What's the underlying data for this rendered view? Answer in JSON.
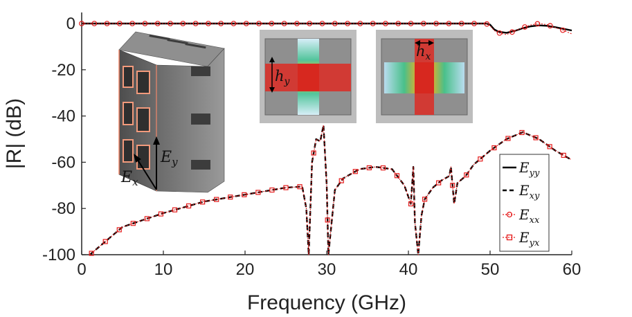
{
  "chart_data": {
    "type": "line",
    "xlabel": "Frequency (GHz)",
    "ylabel": "|R| (dB)",
    "xlim": [
      0,
      60
    ],
    "ylim": [
      -100,
      0
    ],
    "xticks": [
      0,
      10,
      20,
      30,
      40,
      50,
      60
    ],
    "yticks": [
      0,
      -20,
      -40,
      -60,
      -80,
      -100
    ],
    "grid": false,
    "legend_position": "right",
    "series": [
      {
        "name": "E_yy",
        "color": "#000000",
        "style": "solid",
        "x": [
          0,
          10,
          20,
          30,
          40,
          49.5,
          50,
          50.5,
          51,
          52,
          53,
          54,
          55,
          56,
          57,
          58,
          59,
          60
        ],
        "y": [
          0,
          0,
          0,
          0,
          0,
          0,
          -0.5,
          -2.5,
          -3.5,
          -4,
          -3.2,
          -2,
          -1.2,
          -0.8,
          -1,
          -1.6,
          -2.3,
          -3
        ]
      },
      {
        "name": "E_xy",
        "color": "#000000",
        "style": "dashed",
        "x": [
          1,
          5,
          10,
          15,
          20,
          25,
          27,
          27.5,
          27.8,
          28.2,
          28.7,
          29.2,
          29.6,
          30.0,
          30.2,
          31,
          32,
          34,
          36,
          38,
          39.5,
          40.3,
          40.6,
          40.8,
          41.2,
          41.6,
          42,
          43,
          44,
          45,
          45.2,
          45.6,
          46,
          47,
          48,
          50,
          52,
          54,
          56,
          58,
          60
        ],
        "y": [
          -100,
          -88,
          -82,
          -77,
          -74,
          -71,
          -70.5,
          -80,
          -100,
          -60,
          -50,
          -51,
          -44,
          -70,
          -100,
          -72,
          -67,
          -63,
          -62,
          -63,
          -70,
          -78,
          -62,
          -86,
          -100,
          -83,
          -76,
          -71,
          -68,
          -66,
          -62,
          -78,
          -69,
          -66,
          -61,
          -55,
          -50,
          -47,
          -50,
          -55,
          -59
        ]
      },
      {
        "name": "E_xx",
        "color": "#e51b1b",
        "style": "dotted-circle",
        "x": [
          0,
          10,
          20,
          30,
          40,
          49.5,
          50,
          50.5,
          51,
          52,
          53,
          54,
          55,
          56,
          57,
          58,
          59,
          60
        ],
        "y": [
          0,
          0,
          0,
          0,
          0,
          0,
          -1,
          -3,
          -4,
          -4.8,
          -3.2,
          -1.8,
          -0.6,
          0,
          -0.5,
          -1.8,
          -3,
          -4.5
        ]
      },
      {
        "name": "E_yx",
        "color": "#e51b1b",
        "style": "dotted-square",
        "x": [
          1,
          5,
          10,
          15,
          20,
          25,
          27,
          27.5,
          27.8,
          28.2,
          28.7,
          29.2,
          29.6,
          30.0,
          30.2,
          31,
          32,
          34,
          36,
          38,
          39.5,
          40.3,
          40.6,
          40.8,
          41.2,
          41.6,
          42,
          43,
          44,
          45,
          45.2,
          45.6,
          46,
          47,
          48,
          50,
          52,
          54,
          56,
          58,
          60
        ],
        "y": [
          -100,
          -88,
          -82,
          -77,
          -74,
          -71,
          -70.5,
          -80,
          -100,
          -60,
          -50,
          -51,
          -44,
          -70,
          -100,
          -72,
          -67,
          -63,
          -62,
          -63,
          -70,
          -78,
          -62,
          -86,
          -100,
          -83,
          -76,
          -71,
          -68,
          -66,
          -62,
          -78,
          -69,
          -66,
          -61,
          -55,
          -50,
          -47,
          -50,
          -55,
          -59
        ]
      }
    ],
    "legend": [
      {
        "base": "E",
        "sub": "yy"
      },
      {
        "base": "E",
        "sub": "xy"
      },
      {
        "base": "E",
        "sub": "xx"
      },
      {
        "base": "E",
        "sub": "yx"
      }
    ],
    "insets": {
      "structure_axes": [
        {
          "base": "E",
          "sub": "x"
        },
        {
          "base": "E",
          "sub": "y"
        }
      ],
      "field_maps": [
        {
          "base": "h",
          "sub": "y"
        },
        {
          "base": "h",
          "sub": "x"
        }
      ]
    }
  }
}
